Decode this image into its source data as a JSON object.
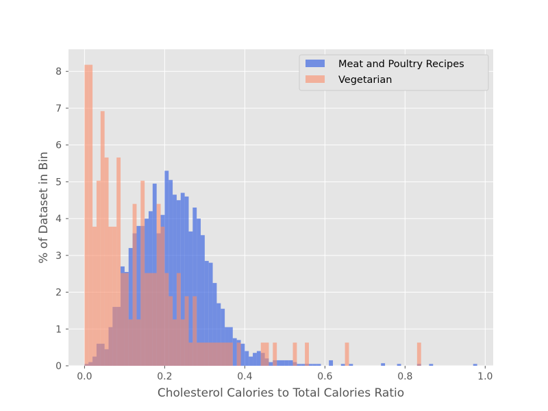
{
  "chart_data": {
    "type": "bar",
    "style": "overlaid-histogram",
    "xlabel": "Cholesterol Calories to Total Calories Ratio",
    "ylabel": "% of Dataset in Bin",
    "xlim": [
      -0.04,
      1.02
    ],
    "ylim": [
      0,
      8.6
    ],
    "xticks": [
      "0.0",
      "0.2",
      "0.4",
      "0.6",
      "0.8",
      "1.0"
    ],
    "yticks": [
      "0",
      "1",
      "2",
      "3",
      "4",
      "5",
      "6",
      "7",
      "8"
    ],
    "grid": true,
    "legend_position": "top-right",
    "bin_width": 0.01,
    "series": [
      {
        "name": "Meat and Poultry Recipes",
        "color": "#4169e1",
        "opacity": 0.7,
        "bin_starts": [
          0.0,
          0.01,
          0.02,
          0.03,
          0.04,
          0.05,
          0.06,
          0.07,
          0.08,
          0.09,
          0.1,
          0.11,
          0.12,
          0.13,
          0.14,
          0.15,
          0.16,
          0.17,
          0.18,
          0.19,
          0.2,
          0.21,
          0.22,
          0.23,
          0.24,
          0.25,
          0.26,
          0.27,
          0.28,
          0.29,
          0.3,
          0.31,
          0.32,
          0.33,
          0.34,
          0.35,
          0.36,
          0.37,
          0.38,
          0.39,
          0.4,
          0.41,
          0.42,
          0.43,
          0.44,
          0.45,
          0.46,
          0.47,
          0.48,
          0.49,
          0.5,
          0.51,
          0.52,
          0.53,
          0.54,
          0.55,
          0.56,
          0.57,
          0.58,
          0.61,
          0.64,
          0.66,
          0.74,
          0.78,
          0.83,
          0.86,
          0.97
        ],
        "values": [
          0.05,
          0.1,
          0.25,
          0.6,
          0.6,
          0.45,
          1.05,
          1.6,
          1.6,
          2.7,
          2.55,
          3.2,
          3.6,
          3.8,
          3.8,
          4.0,
          4.2,
          4.95,
          3.6,
          4.1,
          5.3,
          5.05,
          4.65,
          4.5,
          4.7,
          4.6,
          3.65,
          4.3,
          4.0,
          3.55,
          2.85,
          2.8,
          2.25,
          1.7,
          1.55,
          1.05,
          1.05,
          0.75,
          0.7,
          0.6,
          0.4,
          0.25,
          0.35,
          0.4,
          0.35,
          0.2,
          0.1,
          0.15,
          0.15,
          0.15,
          0.15,
          0.15,
          0.1,
          0.05,
          0.05,
          0.05,
          0.05,
          0.05,
          0.05,
          0.15,
          0.05,
          0.05,
          0.07,
          0.05,
          0.05,
          0.05,
          0.05
        ]
      },
      {
        "name": "Vegetarian",
        "color": "#fa8c69",
        "opacity": 0.6,
        "bin_starts": [
          0.0,
          0.01,
          0.02,
          0.03,
          0.04,
          0.05,
          0.06,
          0.07,
          0.08,
          0.09,
          0.1,
          0.11,
          0.12,
          0.13,
          0.14,
          0.15,
          0.16,
          0.17,
          0.18,
          0.19,
          0.2,
          0.21,
          0.22,
          0.23,
          0.24,
          0.25,
          0.26,
          0.27,
          0.28,
          0.29,
          0.3,
          0.31,
          0.32,
          0.33,
          0.34,
          0.35,
          0.36,
          0.37,
          0.38,
          0.39,
          0.4,
          0.41,
          0.42,
          0.43,
          0.44,
          0.45,
          0.46,
          0.47,
          0.48,
          0.49,
          0.5,
          0.51,
          0.52,
          0.53,
          0.54,
          0.55,
          0.56,
          0.57,
          0.58,
          0.59,
          0.6,
          0.61,
          0.62,
          0.63,
          0.64,
          0.65,
          0.66,
          0.67,
          0.68,
          0.69,
          0.7,
          0.71,
          0.72,
          0.73,
          0.74,
          0.75,
          0.76,
          0.77,
          0.78,
          0.79,
          0.8,
          0.81,
          0.82,
          0.83,
          0.84,
          0.85,
          0.86,
          0.87,
          0.88,
          0.89,
          0.9,
          0.91,
          0.92,
          0.93,
          0.94,
          0.95,
          0.96,
          0.97,
          0.98,
          0.99
        ],
        "values": [
          8.18,
          8.18,
          3.78,
          5.03,
          6.92,
          5.66,
          3.78,
          3.78,
          5.66,
          2.52,
          2.52,
          1.26,
          4.4,
          1.26,
          5.03,
          2.52,
          2.52,
          2.52,
          4.4,
          3.78,
          2.52,
          1.89,
          1.26,
          2.52,
          1.26,
          1.89,
          0.63,
          1.89,
          0.63,
          0.63,
          0.63,
          0.63,
          0.63,
          0.63,
          0.63,
          0.63,
          0.63,
          0.0,
          0.63,
          0.0,
          0.0,
          0.0,
          0.0,
          0.0,
          0.63,
          0.63,
          0.0,
          0.63,
          0.0,
          0.0,
          0.0,
          0.0,
          0.63,
          0.0,
          0.0,
          0.63,
          0.0,
          0.0,
          0.0,
          0.0,
          0.0,
          0.0,
          0.0,
          0.0,
          0.0,
          0.63,
          0.0,
          0.0,
          0.0,
          0.0,
          0.0,
          0.0,
          0.0,
          0.0,
          0.0,
          0.0,
          0.0,
          0.0,
          0.0,
          0.0,
          0.0,
          0.0,
          0.0,
          0.63,
          0.0,
          0.0,
          0.0,
          0.0,
          0.0,
          0.0,
          0.0,
          0.0,
          0.0,
          0.0,
          0.0,
          0.0,
          0.0,
          0.0,
          0.0,
          0.0
        ]
      }
    ]
  }
}
